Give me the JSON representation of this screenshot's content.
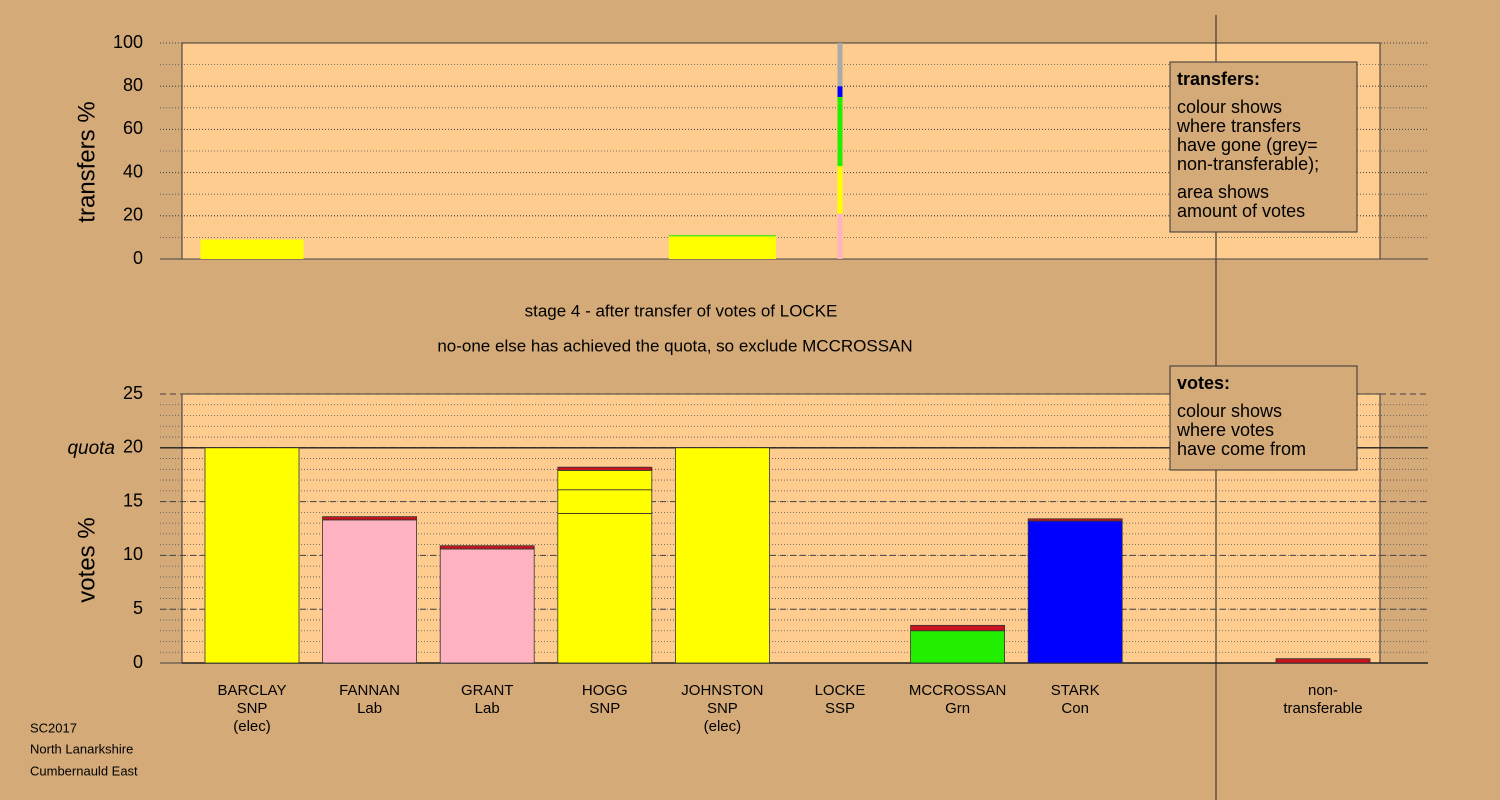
{
  "chart_data": [
    {
      "type": "bar",
      "ylabel": "transfers %",
      "ylim": [
        0,
        100
      ],
      "yticks": [
        0,
        20,
        40,
        60,
        80,
        100
      ],
      "grid": true,
      "legend": {
        "title": "transfers:",
        "lines": [
          "colour shows",
          "where transfers",
          "have gone (grey=",
          "non-transferable);",
          "area shows",
          "amount of votes"
        ]
      },
      "series": [
        {
          "color": "#ffb3c1",
          "values": [
            null,
            null,
            null,
            null,
            null,
            21,
            null,
            null,
            null
          ]
        },
        {
          "color": "#ffff00",
          "values": [
            9,
            null,
            null,
            null,
            10.5,
            22,
            null,
            null,
            null
          ]
        },
        {
          "color": "#22ee00",
          "values": [
            null,
            null,
            null,
            null,
            0.5,
            32,
            null,
            null,
            null
          ]
        },
        {
          "color": "#0000ff",
          "values": [
            null,
            null,
            null,
            null,
            null,
            5,
            null,
            null,
            null
          ]
        },
        {
          "color": "#aaaaaa",
          "values": [
            null,
            null,
            null,
            null,
            null,
            20,
            null,
            null,
            null
          ]
        }
      ]
    },
    {
      "type": "bar",
      "ylabel": "votes %",
      "ylim": [
        0,
        25
      ],
      "yticks": [
        0,
        5,
        10,
        15,
        20,
        25
      ],
      "grid": true,
      "quota": {
        "value": 20,
        "label": "quota"
      },
      "legend": {
        "title": "votes:",
        "lines": [
          "colour shows",
          "where votes",
          "have come from"
        ]
      },
      "categories": [
        [
          "BARCLAY",
          "SNP",
          "(elec)"
        ],
        [
          "FANNAN",
          "Lab"
        ],
        [
          "GRANT",
          "Lab"
        ],
        [
          "HOGG",
          "SNP"
        ],
        [
          "JOHNSTON",
          "SNP",
          "(elec)"
        ],
        [
          "LOCKE",
          "SSP"
        ],
        [
          "MCCROSSAN",
          "Grn"
        ],
        [
          "STARK",
          "Con"
        ],
        [
          "non-",
          "transferable"
        ]
      ],
      "series": [
        {
          "color": "#ffb3c1",
          "values": [
            null,
            13.3,
            10.6,
            null,
            null,
            null,
            null,
            null,
            null
          ]
        },
        {
          "color": "#ffff00",
          "values": [
            20,
            null,
            null,
            13.9,
            20,
            null,
            null,
            null,
            null
          ]
        },
        {
          "color": "#22ee00",
          "values": [
            null,
            null,
            null,
            null,
            null,
            null,
            3.0,
            null,
            null
          ]
        },
        {
          "color": "#0000ff",
          "values": [
            null,
            null,
            null,
            null,
            null,
            null,
            null,
            13.2,
            null
          ]
        },
        {
          "color": "#ffff00",
          "values": [
            null,
            null,
            null,
            2.2,
            null,
            null,
            null,
            null,
            null
          ]
        },
        {
          "color": "#ffff00",
          "values": [
            null,
            null,
            null,
            1.8,
            null,
            null,
            null,
            null,
            null
          ]
        },
        {
          "color": "#c8141e",
          "values": [
            null,
            0.3,
            0.3,
            0.3,
            null,
            0,
            0.5,
            0.2,
            0.4
          ]
        }
      ]
    }
  ],
  "stage": [
    "stage 4 - after transfer of votes of LOCKE",
    "no-one else has achieved the quota, so exclude MCCROSSAN"
  ],
  "footer": [
    "SC2017",
    "North Lanarkshire",
    "Cumbernauld East"
  ]
}
